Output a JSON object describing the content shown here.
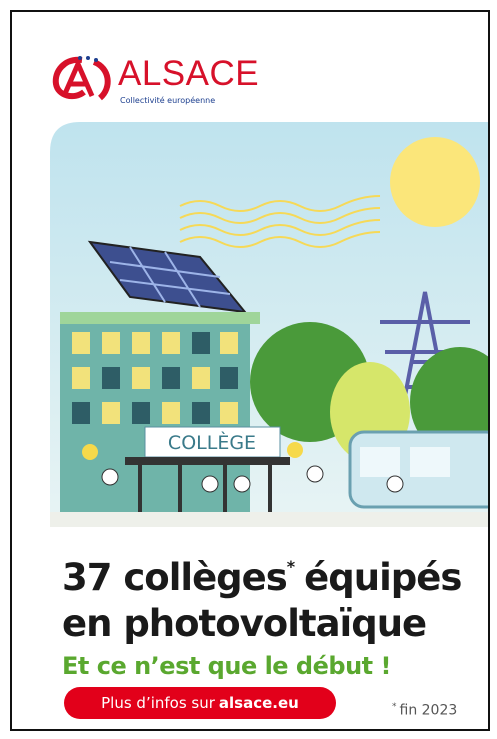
{
  "logo": {
    "name": "ALSACE",
    "tagline": "Collectivité européenne"
  },
  "illustration": {
    "sign": "COLLÈGE"
  },
  "headline": {
    "part1": "37 collèges",
    "mark": "*",
    "part2": "équipés",
    "line2": "en photovoltaïque"
  },
  "subheadline": "Et ce n’est que le début !",
  "button": {
    "text": "Plus d’infos sur",
    "link": "alsace.eu"
  },
  "footnote": {
    "mark": "*",
    "text": "fin 2023"
  }
}
